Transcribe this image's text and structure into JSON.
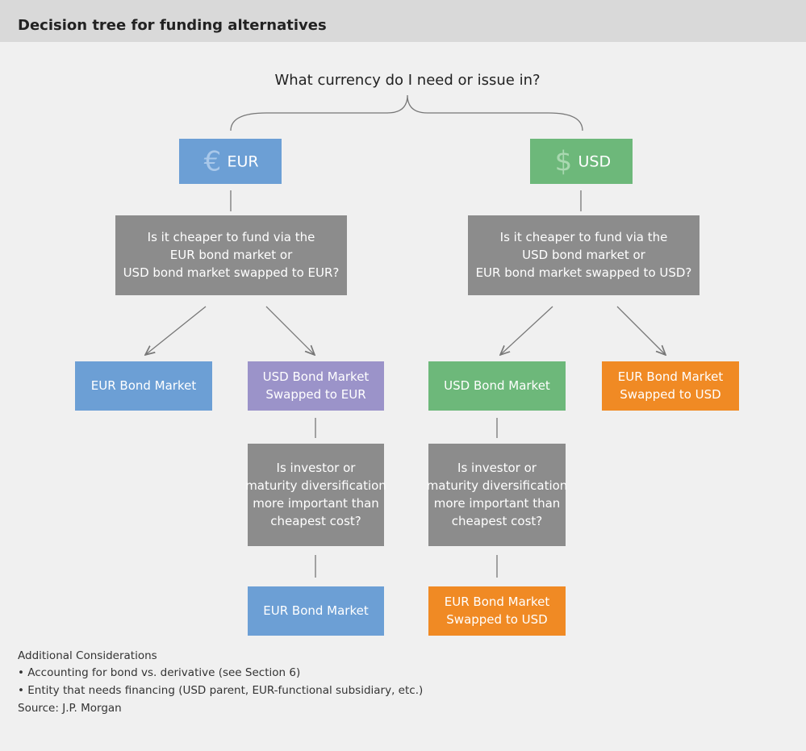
{
  "header": {
    "title": "Decision tree for funding alternatives"
  },
  "question": "What currency do I need or issue in?",
  "nodes": [
    {
      "symbol": "€",
      "lines": [
        "EUR"
      ]
    },
    {
      "symbol": "$",
      "lines": [
        "USD"
      ]
    },
    {
      "lines": [
        "Is it cheaper to fund via the",
        "EUR bond market or",
        "USD bond market swapped to EUR?"
      ]
    },
    {
      "lines": [
        "Is it cheaper to fund via the",
        "USD bond market or",
        "EUR bond market swapped to USD?"
      ]
    },
    {
      "lines": [
        "EUR Bond Market"
      ]
    },
    {
      "lines": [
        "USD Bond Market",
        "Swapped to EUR"
      ]
    },
    {
      "lines": [
        "USD Bond Market"
      ]
    },
    {
      "lines": [
        "EUR Bond Market",
        "Swapped to USD"
      ]
    },
    {
      "lines": [
        "Is investor or",
        "maturity diversification",
        "more important than",
        "cheapest cost?"
      ]
    },
    {
      "lines": [
        "Is investor or",
        "maturity diversification",
        "more important than",
        "cheapest cost?"
      ]
    },
    {
      "lines": [
        "EUR Bond Market"
      ]
    },
    {
      "lines": [
        "EUR Bond Market",
        "Swapped to USD"
      ]
    }
  ],
  "footer": [
    "Additional Considerations",
    "• Accounting for bond vs. derivative (see Section 6)",
    "• Entity that needs financing (USD parent, EUR-functional subsidiary, etc.)",
    "Source: J.P. Morgan"
  ]
}
